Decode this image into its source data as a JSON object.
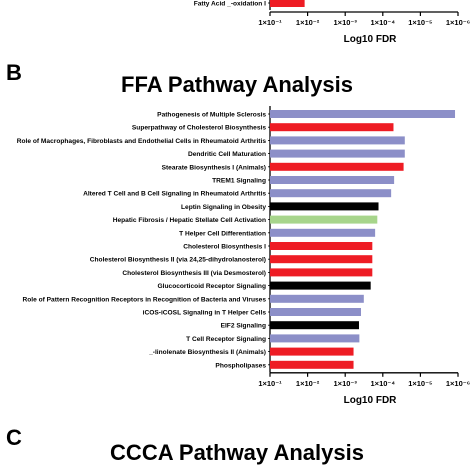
{
  "colors": {
    "blue": "#8c8fc8",
    "red": "#ee1c24",
    "black": "#000000",
    "green": "#a7d58b"
  },
  "panels": {
    "b_letter": "B",
    "c_letter": "C",
    "c_title": "CCCA Pathway Analysis"
  },
  "chart_data": [
    {
      "type": "bar",
      "orientation": "horizontal",
      "note_visible_part": "top panel (A) partially cropped",
      "categories": [
        "Fatty Acid _-oxidation I"
      ],
      "values": [
        0.012
      ],
      "bar_colors": [
        "red"
      ],
      "xlabel": "Log10 FDR",
      "xscale": "log-reversed",
      "xlim": [
        0.1,
        1e-06
      ],
      "xticks": [
        "1×10⁻¹",
        "1×10⁻²",
        "1×10⁻³",
        "1×10⁻⁴",
        "1×10⁻⁵",
        "1×10⁻⁶"
      ]
    },
    {
      "type": "bar",
      "orientation": "horizontal",
      "title": "FFA Pathway Analysis",
      "xlabel": "Log10 FDR",
      "xscale": "log-reversed",
      "xlim": [
        0.1,
        1e-06
      ],
      "xticks": [
        "1×10⁻¹",
        "1×10⁻²",
        "1×10⁻³",
        "1×10⁻⁴",
        "1×10⁻⁵",
        "1×10⁻⁶"
      ],
      "categories": [
        "Pathogenesis of Multiple Sclerosis",
        "Superpathway of Cholesterol Biosynthesis",
        "Role of Macrophages, Fibroblasts and Endothelial Cells in Rheumatoid Arthritis",
        "Dendritic Cell Maturation",
        "Stearate Biosynthesis I (Animals)",
        "TREM1 Signaling",
        "Altered T Cell and B Cell Signaling in Rheumatoid Arthritis",
        "Leptin Signaling in Obesity",
        "Hepatic Fibrosis / Hepatic Stellate Cell Activation",
        "T Helper Cell Differentiation",
        "Cholesterol Biosynthesis I",
        "Cholesterol Biosynthesis II (via 24,25-dihydrolanosterol)",
        "Cholesterol Biosynthesis III (via Desmosterol)",
        "Glucocorticoid Receptor Signaling",
        "Role of Pattern Recognition Receptors in Recognition of Bacteria and Viruses",
        "iCOS-iCOSL Signaling in T Helper Cells",
        "EIF2 Signaling",
        "T Cell Receptor Signaling",
        "_-linolenate Biosynthesis II (Animals)",
        "Phospholipases"
      ],
      "values": [
        1.2e-06,
        5.2e-05,
        2.6e-05,
        2.6e-05,
        2.8e-05,
        5e-05,
        6e-05,
        0.00013,
        0.00014,
        0.00016,
        0.00019,
        0.00019,
        0.00019,
        0.00021,
        0.00032,
        0.00038,
        0.00043,
        0.00042,
        0.0006,
        0.0006
      ],
      "bar_colors": [
        "blue",
        "red",
        "blue",
        "blue",
        "red",
        "blue",
        "blue",
        "black",
        "green",
        "blue",
        "red",
        "red",
        "red",
        "black",
        "blue",
        "blue",
        "black",
        "blue",
        "red",
        "red"
      ]
    }
  ]
}
